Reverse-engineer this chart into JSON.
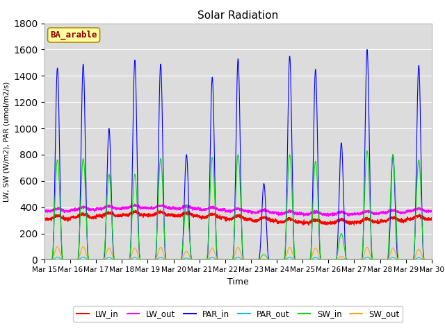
{
  "title": "Solar Radiation",
  "xlabel": "Time",
  "ylabel": "LW, SW (W/m2), PAR (umol/m2/s)",
  "annotation_text": "BA_arable",
  "annotation_color": "#8B0000",
  "annotation_bg": "#FFFFA0",
  "ylim": [
    0,
    1800
  ],
  "yticks": [
    0,
    200,
    400,
    600,
    800,
    1000,
    1200,
    1400,
    1600,
    1800
  ],
  "xtick_labels": [
    "Mar 15",
    "Mar 16",
    "Mar 17",
    "Mar 18",
    "Mar 19",
    "Mar 20",
    "Mar 21",
    "Mar 22",
    "Mar 23",
    "Mar 24",
    "Mar 25",
    "Mar 26",
    "Mar 27",
    "Mar 28",
    "Mar 29",
    "Mar 30"
  ],
  "line_colors": {
    "LW_in": "#FF0000",
    "LW_out": "#FF00FF",
    "PAR_in": "#0000FF",
    "PAR_out": "#00CCCC",
    "SW_in": "#00DD00",
    "SW_out": "#FFA500"
  },
  "grid_color": "#FFFFFF",
  "bg_color": "#DCDCDC",
  "fig_bg": "#FFFFFF",
  "par_peaks": [
    1460,
    1490,
    1000,
    1520,
    1490,
    800,
    1390,
    1530,
    580,
    1550,
    1450,
    890,
    1600,
    800,
    1480
  ],
  "sw_peaks": [
    760,
    770,
    650,
    650,
    770,
    420,
    780,
    800,
    40,
    800,
    750,
    200,
    830,
    800,
    760
  ],
  "sw_out_peaks": [
    100,
    100,
    90,
    90,
    95,
    65,
    90,
    95,
    5,
    95,
    90,
    25,
    95,
    90,
    80
  ],
  "par_out_peaks": [
    20,
    20,
    18,
    18,
    19,
    13,
    18,
    19,
    1,
    19,
    18,
    5,
    19,
    18,
    16
  ]
}
